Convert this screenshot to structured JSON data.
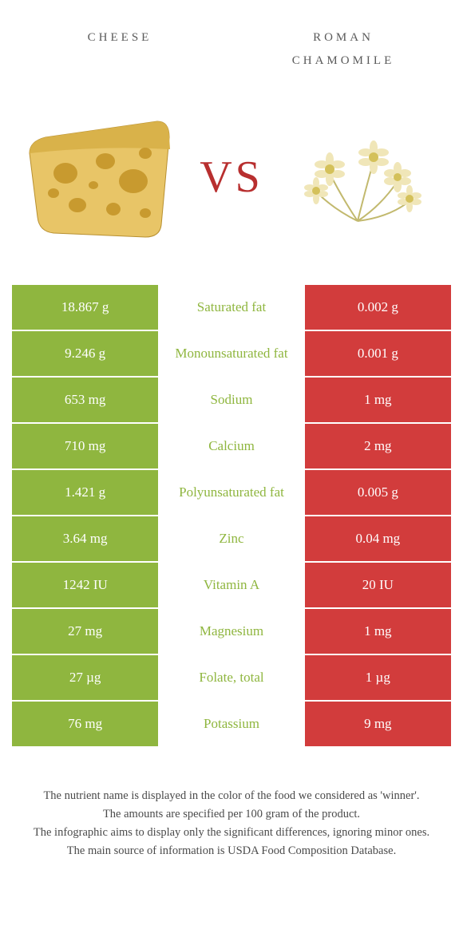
{
  "header": {
    "left_title": "cheese",
    "right_title_line1": "roman",
    "right_title_line2": "chamomile"
  },
  "vs_label": "VS",
  "colors": {
    "left_col": "#8fb63f",
    "right_col": "#d23c3c",
    "label_left_color": "#8fb63f",
    "label_right_color": "#d23c3c",
    "cheese_fill": "#e8c567",
    "cheese_rind": "#d9b24a",
    "cheese_hole": "#c89a2f",
    "flower_petal": "#f0e6b8",
    "flower_center": "#d4c15a",
    "flower_stem": "#c2b96e"
  },
  "table": {
    "rows": [
      {
        "left": "18.867 g",
        "label": "Saturated fat",
        "right": "0.002 g",
        "winner": "left"
      },
      {
        "left": "9.246 g",
        "label": "Monounsaturated fat",
        "right": "0.001 g",
        "winner": "left"
      },
      {
        "left": "653 mg",
        "label": "Sodium",
        "right": "1 mg",
        "winner": "left"
      },
      {
        "left": "710 mg",
        "label": "Calcium",
        "right": "2 mg",
        "winner": "left"
      },
      {
        "left": "1.421 g",
        "label": "Polyunsaturated fat",
        "right": "0.005 g",
        "winner": "left"
      },
      {
        "left": "3.64 mg",
        "label": "Zinc",
        "right": "0.04 mg",
        "winner": "left"
      },
      {
        "left": "1242 IU",
        "label": "Vitamin A",
        "right": "20 IU",
        "winner": "left"
      },
      {
        "left": "27 mg",
        "label": "Magnesium",
        "right": "1 mg",
        "winner": "left"
      },
      {
        "left": "27 µg",
        "label": "Folate, total",
        "right": "1 µg",
        "winner": "left"
      },
      {
        "left": "76 mg",
        "label": "Potassium",
        "right": "9 mg",
        "winner": "left"
      }
    ]
  },
  "footnotes": [
    "The nutrient name is displayed in the color of the food we considered as 'winner'.",
    "The amounts are specified per 100 gram of the product.",
    "The infographic aims to display only the significant differences, ignoring minor ones.",
    "The main source of information is USDA Food Composition Database."
  ]
}
